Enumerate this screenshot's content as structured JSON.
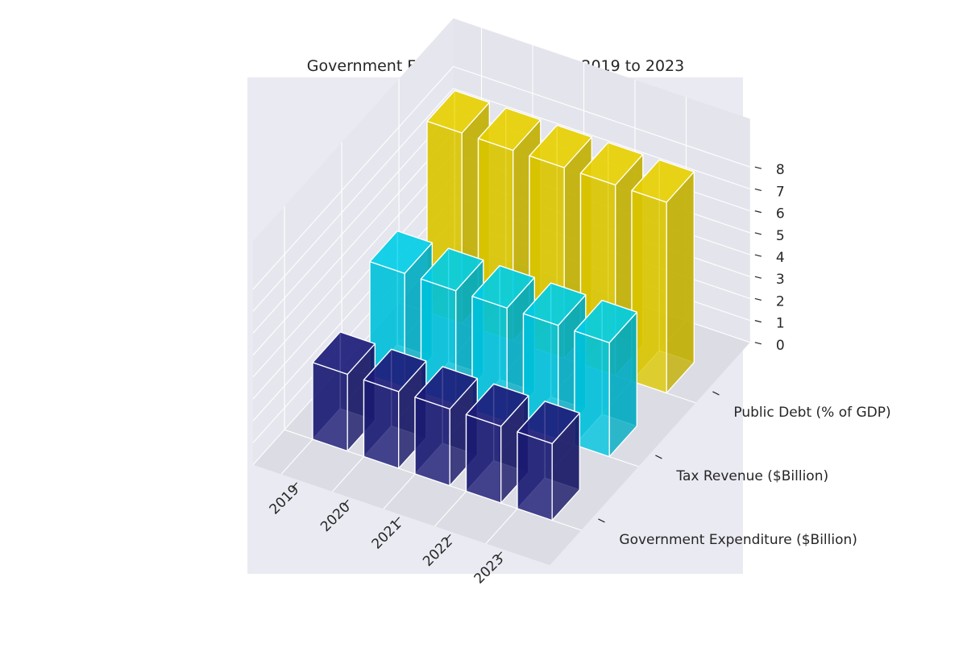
{
  "chart_data": {
    "type": "bar",
    "subtype": "3d-bar",
    "title": "Government Fiscal Policy Analysis - 2019 to 2023",
    "categories": [
      "2019",
      "2020",
      "2021",
      "2022",
      "2023"
    ],
    "series": [
      {
        "name": "Government Expenditure ($Billion)",
        "values": [
          3.5,
          3.5,
          3.5,
          3.5,
          3.5
        ],
        "color": "#191970"
      },
      {
        "name": "Tax Revenue ($Billion)",
        "values": [
          5.2,
          5.2,
          5.2,
          5.2,
          5.2
        ],
        "color": "#00bcd4"
      },
      {
        "name": "Public Debt (% of GDP)",
        "values": [
          8.7,
          8.7,
          8.7,
          8.7,
          8.7
        ],
        "color": "#d4bf00"
      }
    ],
    "zticks": [
      "0",
      "1",
      "2",
      "3",
      "4",
      "5",
      "6",
      "7",
      "8"
    ],
    "zlim": [
      0,
      8.5
    ],
    "grid": true
  }
}
